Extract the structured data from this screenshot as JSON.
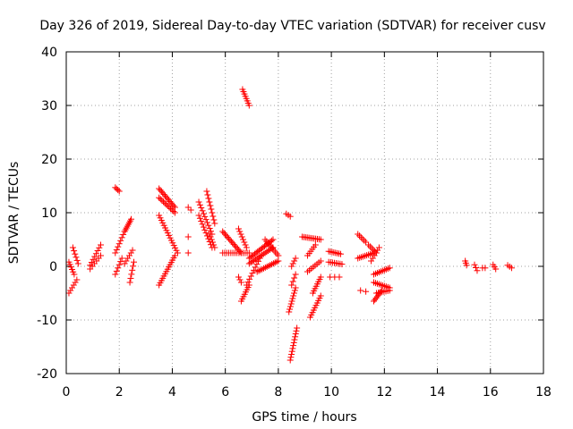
{
  "chart_data": {
    "type": "scatter",
    "title": "Day 326 of 2019, Sidereal Day-to-day VTEC variation (SDTVAR) for receiver cusv",
    "xlabel": "GPS time / hours",
    "ylabel": "SDTVAR / TECUs",
    "xlim": [
      0,
      18
    ],
    "ylim": [
      -20,
      40
    ],
    "xticks": [
      "0",
      "2",
      "4",
      "6",
      "8",
      "10",
      "12",
      "14",
      "16",
      "18"
    ],
    "yticks": [
      "-20",
      "-10",
      "0",
      "10",
      "20",
      "30",
      "40"
    ],
    "grid": true,
    "marker": "+",
    "color": "#ff0000",
    "segments": [
      {
        "x": [
          0.1,
          0.3
        ],
        "y": [
          0.8,
          -1.5
        ],
        "n": 6
      },
      {
        "x": [
          0.1,
          0.4
        ],
        "y": [
          -5.0,
          -2.5
        ],
        "n": 6
      },
      {
        "x": [
          0.25,
          0.45
        ],
        "y": [
          3.5,
          0.5
        ],
        "n": 6
      },
      {
        "x": [
          0.9,
          1.3
        ],
        "y": [
          0.2,
          4.0
        ],
        "n": 8
      },
      {
        "x": [
          0.9,
          1.3
        ],
        "y": [
          -0.5,
          2.0
        ],
        "n": 6
      },
      {
        "x": [
          1.85,
          2.0
        ],
        "y": [
          14.7,
          14.0
        ],
        "n": 4
      },
      {
        "x": [
          1.85,
          2.2
        ],
        "y": [
          2.5,
          6.5
        ],
        "n": 8
      },
      {
        "x": [
          1.85,
          2.1
        ],
        "y": [
          -1.5,
          1.5
        ],
        "n": 6
      },
      {
        "x": [
          2.2,
          2.45
        ],
        "y": [
          6.5,
          8.8
        ],
        "n": 8
      },
      {
        "x": [
          2.2,
          2.5
        ],
        "y": [
          0.5,
          3.0
        ],
        "n": 6
      },
      {
        "x": [
          2.4,
          2.55
        ],
        "y": [
          -3.0,
          0.8
        ],
        "n": 6
      },
      {
        "x": [
          3.5,
          4.1
        ],
        "y": [
          14.5,
          11.0
        ],
        "n": 14
      },
      {
        "x": [
          3.5,
          4.1
        ],
        "y": [
          12.8,
          10.0
        ],
        "n": 12
      },
      {
        "x": [
          3.5,
          4.2
        ],
        "y": [
          9.5,
          2.5
        ],
        "n": 16
      },
      {
        "x": [
          3.5,
          4.1
        ],
        "y": [
          -3.5,
          2.0
        ],
        "n": 14
      },
      {
        "x": [
          4.6,
          4.7
        ],
        "y": [
          11.0,
          10.5
        ],
        "n": 2
      },
      {
        "x": [
          4.6,
          4.65
        ],
        "y": [
          5.5,
          5.5
        ],
        "n": 1
      },
      {
        "x": [
          4.6,
          4.65
        ],
        "y": [
          2.5,
          2.5
        ],
        "n": 1
      },
      {
        "x": [
          5.0,
          5.5
        ],
        "y": [
          12.0,
          6.0
        ],
        "n": 12
      },
      {
        "x": [
          5.0,
          5.5
        ],
        "y": [
          9.5,
          3.5
        ],
        "n": 12
      },
      {
        "x": [
          5.3,
          5.6
        ],
        "y": [
          14.0,
          8.0
        ],
        "n": 10
      },
      {
        "x": [
          5.4,
          5.6
        ],
        "y": [
          6.0,
          3.5
        ],
        "n": 6
      },
      {
        "x": [
          5.9,
          6.6
        ],
        "y": [
          6.5,
          2.5
        ],
        "n": 16
      },
      {
        "x": [
          5.9,
          6.9
        ],
        "y": [
          2.5,
          2.5
        ],
        "n": 14
      },
      {
        "x": [
          6.5,
          6.8
        ],
        "y": [
          7.0,
          3.5
        ],
        "n": 8
      },
      {
        "x": [
          6.5,
          6.6
        ],
        "y": [
          -2.0,
          -3.0
        ],
        "n": 3
      },
      {
        "x": [
          6.6,
          6.9
        ],
        "y": [
          -6.5,
          -3.5
        ],
        "n": 8
      },
      {
        "x": [
          6.65,
          6.9
        ],
        "y": [
          33.0,
          30.0
        ],
        "n": 8
      },
      {
        "x": [
          6.8,
          7.3
        ],
        "y": [
          -3.5,
          1.5
        ],
        "n": 10
      },
      {
        "x": [
          6.9,
          7.8
        ],
        "y": [
          1.5,
          5.0
        ],
        "n": 18
      },
      {
        "x": [
          6.9,
          7.8
        ],
        "y": [
          0.5,
          3.5
        ],
        "n": 16
      },
      {
        "x": [
          7.2,
          8.0
        ],
        "y": [
          -1.0,
          1.0
        ],
        "n": 14
      },
      {
        "x": [
          7.5,
          8.0
        ],
        "y": [
          5.0,
          2.0
        ],
        "n": 10
      },
      {
        "x": [
          8.3,
          8.45
        ],
        "y": [
          9.8,
          9.3
        ],
        "n": 3
      },
      {
        "x": [
          8.4,
          8.65
        ],
        "y": [
          -8.5,
          -4.0
        ],
        "n": 10
      },
      {
        "x": [
          8.45,
          8.7
        ],
        "y": [
          -17.5,
          -11.5
        ],
        "n": 12
      },
      {
        "x": [
          8.5,
          8.65
        ],
        "y": [
          0.0,
          1.5
        ],
        "n": 4
      },
      {
        "x": [
          8.5,
          8.65
        ],
        "y": [
          -3.5,
          -1.5
        ],
        "n": 4
      },
      {
        "x": [
          8.9,
          9.6
        ],
        "y": [
          5.5,
          5.0
        ],
        "n": 12
      },
      {
        "x": [
          9.1,
          9.4
        ],
        "y": [
          2.0,
          4.0
        ],
        "n": 6
      },
      {
        "x": [
          9.1,
          9.6
        ],
        "y": [
          -1.0,
          1.0
        ],
        "n": 8
      },
      {
        "x": [
          9.2,
          9.6
        ],
        "y": [
          -9.5,
          -5.5
        ],
        "n": 10
      },
      {
        "x": [
          9.3,
          9.6
        ],
        "y": [
          -5.0,
          -2.0
        ],
        "n": 8
      },
      {
        "x": [
          9.9,
          10.35
        ],
        "y": [
          2.8,
          2.3
        ],
        "n": 8
      },
      {
        "x": [
          9.9,
          10.4
        ],
        "y": [
          0.8,
          0.4
        ],
        "n": 8
      },
      {
        "x": [
          9.95,
          10.3
        ],
        "y": [
          -2.0,
          -2.0
        ],
        "n": 3
      },
      {
        "x": [
          11.0,
          11.3
        ],
        "y": [
          6.0,
          4.5
        ],
        "n": 6
      },
      {
        "x": [
          11.0,
          11.6
        ],
        "y": [
          1.5,
          2.5
        ],
        "n": 10
      },
      {
        "x": [
          11.1,
          11.3
        ],
        "y": [
          -4.5,
          -4.7
        ],
        "n": 2
      },
      {
        "x": [
          11.4,
          11.7
        ],
        "y": [
          4.0,
          2.5
        ],
        "n": 6
      },
      {
        "x": [
          11.5,
          11.8
        ],
        "y": [
          1.0,
          3.5
        ],
        "n": 6
      },
      {
        "x": [
          11.6,
          12.2
        ],
        "y": [
          -1.5,
          -0.3
        ],
        "n": 10
      },
      {
        "x": [
          11.6,
          12.2
        ],
        "y": [
          -3.0,
          -4.0
        ],
        "n": 10
      },
      {
        "x": [
          11.6,
          11.9
        ],
        "y": [
          -6.5,
          -4.5
        ],
        "n": 8
      },
      {
        "x": [
          11.7,
          12.2
        ],
        "y": [
          -5.0,
          -4.5
        ],
        "n": 8
      },
      {
        "x": [
          15.05,
          15.1
        ],
        "y": [
          1.0,
          0.2
        ],
        "n": 3
      },
      {
        "x": [
          15.4,
          15.5
        ],
        "y": [
          0.3,
          -0.8
        ],
        "n": 3
      },
      {
        "x": [
          15.7,
          15.8
        ],
        "y": [
          -0.3,
          -0.3
        ],
        "n": 2
      },
      {
        "x": [
          16.1,
          16.2
        ],
        "y": [
          0.3,
          -0.5
        ],
        "n": 3
      },
      {
        "x": [
          16.65,
          16.8
        ],
        "y": [
          0.2,
          -0.3
        ],
        "n": 3
      }
    ]
  }
}
